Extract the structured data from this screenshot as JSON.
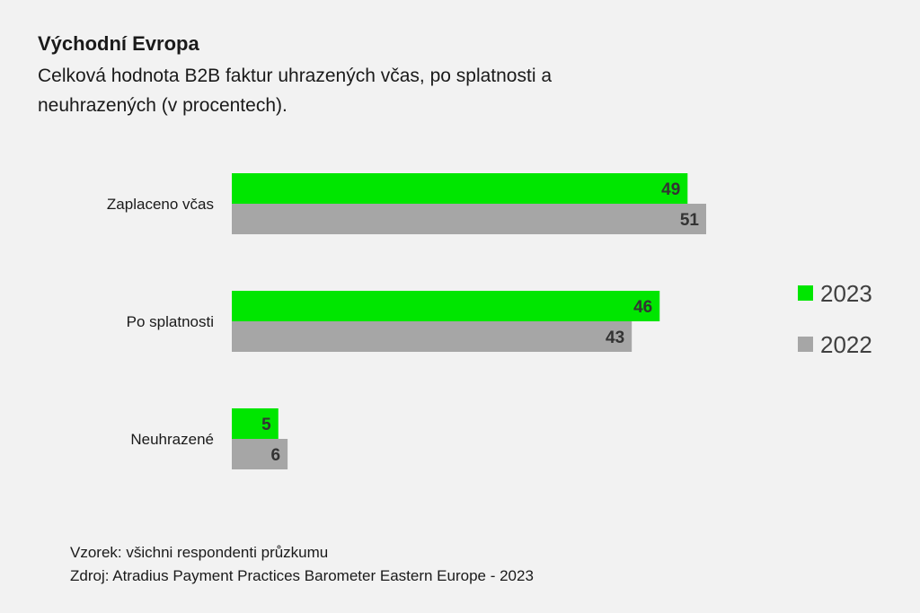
{
  "chart_data": {
    "type": "bar",
    "orientation": "horizontal",
    "title": "Východní Evropa",
    "subtitle": "Celková hodnota B2B faktur uhrazených včas, po splatnosti a neuhrazených (v procentech).",
    "categories": [
      "Zaplaceno včas",
      "Po splatnosti",
      "Neuhrazené"
    ],
    "series": [
      {
        "name": "2023",
        "color": "#00e600",
        "values": [
          49,
          46,
          5
        ]
      },
      {
        "name": "2022",
        "color": "#a6a6a6",
        "values": [
          51,
          43,
          6
        ]
      }
    ],
    "xlim": [
      0,
      51
    ],
    "grid": false,
    "data_labels": true,
    "legend_position": "right"
  },
  "footer": {
    "sample": "Vzorek: všichni respondenti průzkumu",
    "source": "Zdroj: Atradius Payment Practices Barometer Eastern Europe - 2023"
  }
}
